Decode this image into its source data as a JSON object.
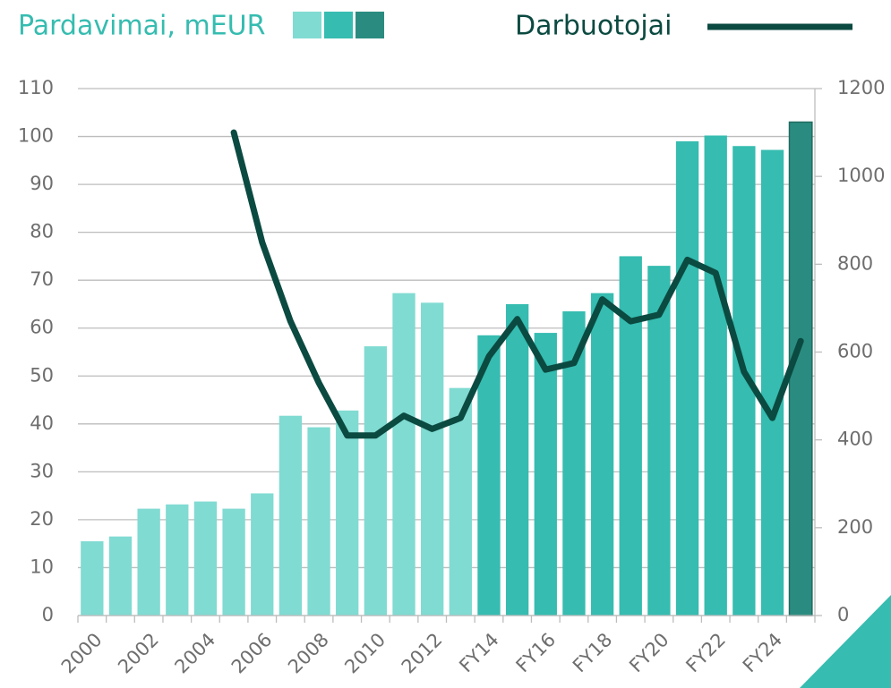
{
  "chart_data": {
    "type": "bar",
    "categories": [
      "2000",
      null,
      "2002",
      null,
      "2004",
      null,
      "2006",
      null,
      "2008",
      null,
      "2010",
      null,
      "2012",
      null,
      "FY14",
      null,
      "FY16",
      null,
      "FY18",
      null,
      "FY20",
      null,
      "FY22",
      null,
      "FY24",
      null
    ],
    "series": [
      {
        "name": "Pardavimai, mEUR",
        "type": "bar",
        "colors": [
          "#80dbd2",
          "#80dbd2",
          "#80dbd2",
          "#80dbd2",
          "#80dbd2",
          "#80dbd2",
          "#80dbd2",
          "#80dbd2",
          "#80dbd2",
          "#80dbd2",
          "#80dbd2",
          "#80dbd2",
          "#80dbd2",
          "#80dbd2",
          "#36bcb0",
          "#36bcb0",
          "#36bcb0",
          "#36bcb0",
          "#36bcb0",
          "#36bcb0",
          "#36bcb0",
          "#36bcb0",
          "#36bcb0",
          "#36bcb0",
          "#36bcb0",
          "#2a8c80"
        ],
        "legend_colors": [
          "#80dbd2",
          "#36bcb0",
          "#2a8c80"
        ],
        "values": [
          15.5,
          16.5,
          22.3,
          23.2,
          23.8,
          22.3,
          25.5,
          41.7,
          39.3,
          42.8,
          56.2,
          67.3,
          65.3,
          47.5,
          58.5,
          65,
          59,
          63.5,
          67.3,
          75,
          73,
          99,
          100.2,
          98,
          97.2,
          103
        ]
      },
      {
        "name": "Darbuotojai",
        "type": "line",
        "axis": "y2",
        "color": "#0b4a41",
        "values": [
          null,
          null,
          null,
          null,
          null,
          1100,
          850,
          670,
          530,
          410,
          410,
          455,
          425,
          450,
          590,
          675,
          560,
          575,
          720,
          670,
          685,
          810,
          780,
          555,
          450,
          625
        ]
      }
    ],
    "ylim": [
      0,
      110
    ],
    "yticks": [
      0,
      10,
      20,
      30,
      40,
      50,
      60,
      70,
      80,
      90,
      100,
      110
    ],
    "y2lim": [
      0,
      1200
    ],
    "y2ticks": [
      0,
      200,
      400,
      600,
      800,
      1000,
      1200
    ],
    "grid": true
  }
}
